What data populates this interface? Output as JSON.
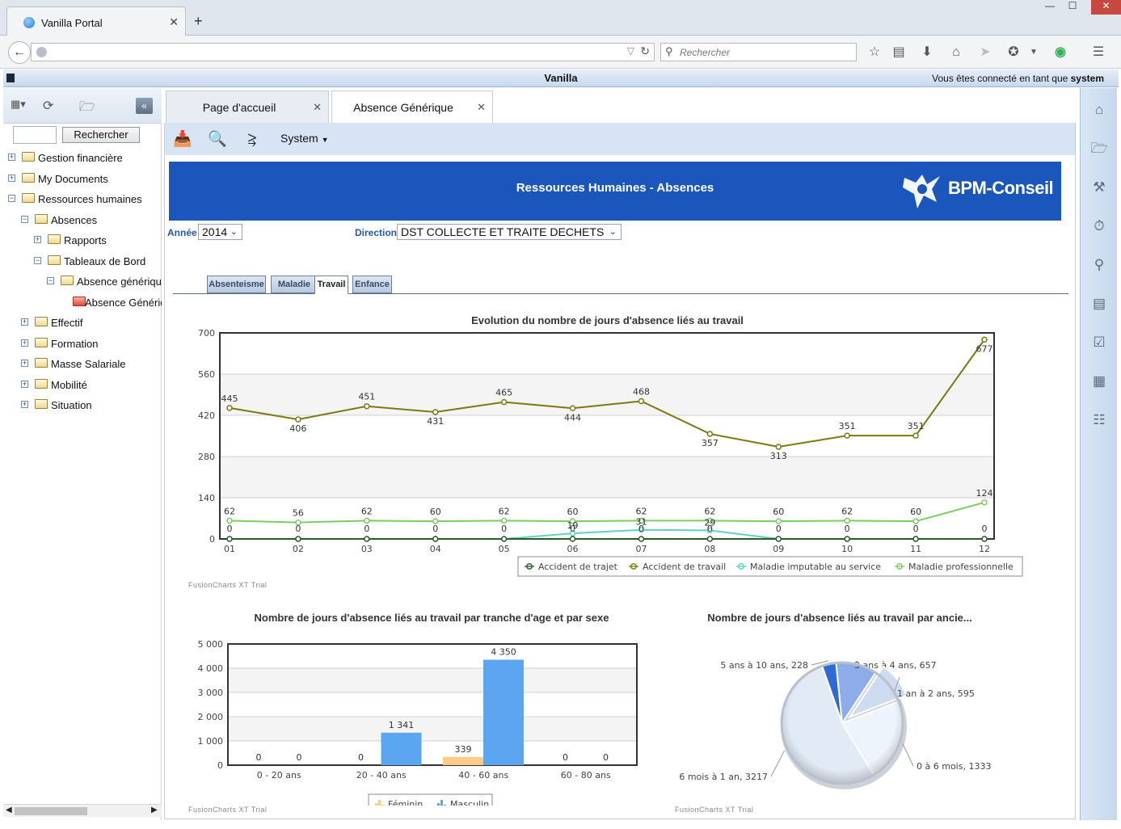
{
  "browser": {
    "tab_title": "Vanilla Portal",
    "tab_close": "✕",
    "new_tab": "+",
    "search_placeholder": "Rechercher",
    "win_min": "—",
    "win_max": "☐",
    "win_close": "✕"
  },
  "app": {
    "name": "Vanilla",
    "connected_prefix": "Vous êtes connecté en tant que ",
    "user": "system"
  },
  "sidebar": {
    "search_button": "Rechercher",
    "tree": [
      {
        "label": "Gestion financière",
        "exp": "+",
        "level": 0
      },
      {
        "label": "My Documents",
        "exp": "+",
        "level": 0
      },
      {
        "label": "Ressources humaines",
        "exp": "−",
        "level": 0
      },
      {
        "label": "Absences",
        "exp": "−",
        "level": 1
      },
      {
        "label": "Rapports",
        "exp": "+",
        "level": 2
      },
      {
        "label": "Tableaux de Bord",
        "exp": "−",
        "level": 2
      },
      {
        "label": "Absence générique",
        "exp": "−",
        "level": 3
      },
      {
        "label": "Absence Générique",
        "exp": "",
        "level": 4
      },
      {
        "label": "Effectif",
        "exp": "+",
        "level": 1
      },
      {
        "label": "Formation",
        "exp": "+",
        "level": 1
      },
      {
        "label": "Masse Salariale",
        "exp": "+",
        "level": 1
      },
      {
        "label": "Mobilité",
        "exp": "+",
        "level": 1
      },
      {
        "label": "Situation",
        "exp": "+",
        "level": 1
      }
    ]
  },
  "tabs": [
    {
      "label": "Page d'accueil",
      "close": "✕"
    },
    {
      "label": "Absence Générique",
      "close": "✕"
    }
  ],
  "toolbar": {
    "system_menu": "System"
  },
  "report": {
    "banner_title": "Ressources Humaines - Absences",
    "logo_text": "BPM-Conseil",
    "annee_label": "Année :",
    "annee_value": "2014",
    "direction_label": "Direction :",
    "direction_value": "DST COLLECTE ET TRAITE DECHETS",
    "subtabs": [
      "Absenteisme",
      "Maladie",
      "Travail",
      "Enfance"
    ],
    "active_subtab": "Travail",
    "trial_text": "FusionCharts XT Trial"
  },
  "colors": {
    "banner": "#1a56bb",
    "accident_trajet": "#2d5a27",
    "accident_travail": "#7a7a10",
    "maladie_imputable": "#5fd3c3",
    "maladie_pro": "#7ccd62",
    "masculin": "#5ca5f0",
    "feminin": "#ffcc88"
  },
  "chart_data": [
    {
      "type": "line",
      "title": "Evolution du nombre de jours d'absence liés au travail",
      "x": [
        "01",
        "02",
        "03",
        "04",
        "05",
        "06",
        "07",
        "08",
        "09",
        "10",
        "11",
        "12"
      ],
      "ylim": [
        0,
        700
      ],
      "yticks": [
        0,
        140,
        280,
        420,
        560,
        700
      ],
      "series": [
        {
          "name": "Accident de trajet",
          "values": [
            0,
            0,
            0,
            0,
            0,
            0,
            0,
            0,
            0,
            0,
            0,
            0
          ]
        },
        {
          "name": "Accident de travail",
          "values": [
            445,
            406,
            451,
            431,
            465,
            444,
            468,
            357,
            313,
            351,
            351,
            677
          ]
        },
        {
          "name": "Maladie imputable au service",
          "values": [
            0,
            0,
            0,
            0,
            0,
            19,
            31,
            29,
            0,
            0,
            0,
            0
          ]
        },
        {
          "name": "Maladie professionnelle",
          "values": [
            62,
            56,
            62,
            60,
            62,
            60,
            62,
            62,
            60,
            62,
            60,
            124
          ]
        }
      ]
    },
    {
      "type": "bar",
      "title": "Nombre de jours d'absence liés au travail par tranche d'age et par sexe",
      "categories": [
        "0 - 20 ans",
        "20 - 40 ans",
        "40 - 60 ans",
        "60 - 80 ans"
      ],
      "ylim": [
        0,
        5000
      ],
      "yticks": [
        "0",
        "1 000",
        "2 000",
        "3 000",
        "4 000",
        "5 000"
      ],
      "series": [
        {
          "name": "Féminin",
          "values": [
            0,
            0,
            339,
            0
          ],
          "labels": [
            "0",
            "0",
            "339",
            "0"
          ]
        },
        {
          "name": "Masculin",
          "values": [
            0,
            1341,
            4350,
            0
          ],
          "labels": [
            "0",
            "1 341",
            "4 350",
            "0"
          ]
        }
      ]
    },
    {
      "type": "pie",
      "title": "Nombre de jours d'absence liés au travail par ancie...",
      "slices": [
        {
          "label": "0 à 6 mois, 1333",
          "value": 1333
        },
        {
          "label": "6 mois à 1 an, 3217",
          "value": 3217
        },
        {
          "label": "5 ans à 10 ans, 228",
          "value": 228
        },
        {
          "label": "3 ans à 4 ans, 657",
          "value": 657
        },
        {
          "label": "1 an à 2 ans, 595",
          "value": 595
        }
      ]
    }
  ]
}
